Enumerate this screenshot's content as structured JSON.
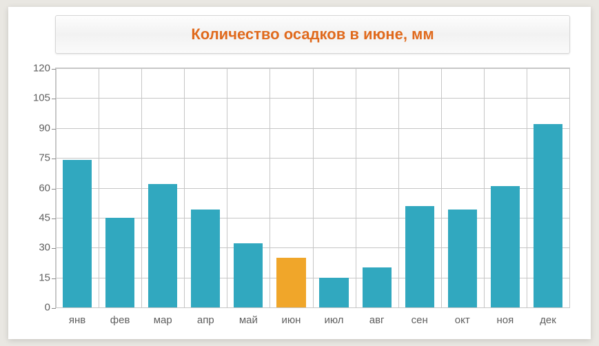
{
  "chart": {
    "type": "bar",
    "title": "Количество осадков в июне, мм",
    "title_color": "#e06a1d",
    "title_fontsize": 22,
    "categories": [
      "янв",
      "фев",
      "мар",
      "апр",
      "май",
      "июн",
      "июл",
      "авг",
      "сен",
      "окт",
      "ноя",
      "дек"
    ],
    "values": [
      74,
      45,
      62,
      49,
      32,
      25,
      15,
      20,
      51,
      49,
      61,
      92
    ],
    "bar_colors": [
      "#31a8bf",
      "#31a8bf",
      "#31a8bf",
      "#31a8bf",
      "#31a8bf",
      "#f0a62a",
      "#31a8bf",
      "#31a8bf",
      "#31a8bf",
      "#31a8bf",
      "#31a8bf",
      "#31a8bf"
    ],
    "ylim": [
      0,
      120
    ],
    "ytick_step": 15,
    "yticks": [
      0,
      15,
      30,
      45,
      60,
      75,
      90,
      105,
      120
    ],
    "background_color": "#ffffff",
    "grid_color": "#c6c6c6",
    "axis_color": "#888888",
    "label_color": "#5f5f5f",
    "label_fontsize": 15,
    "bar_width": 0.68,
    "page_background": "#e9e7e2"
  }
}
